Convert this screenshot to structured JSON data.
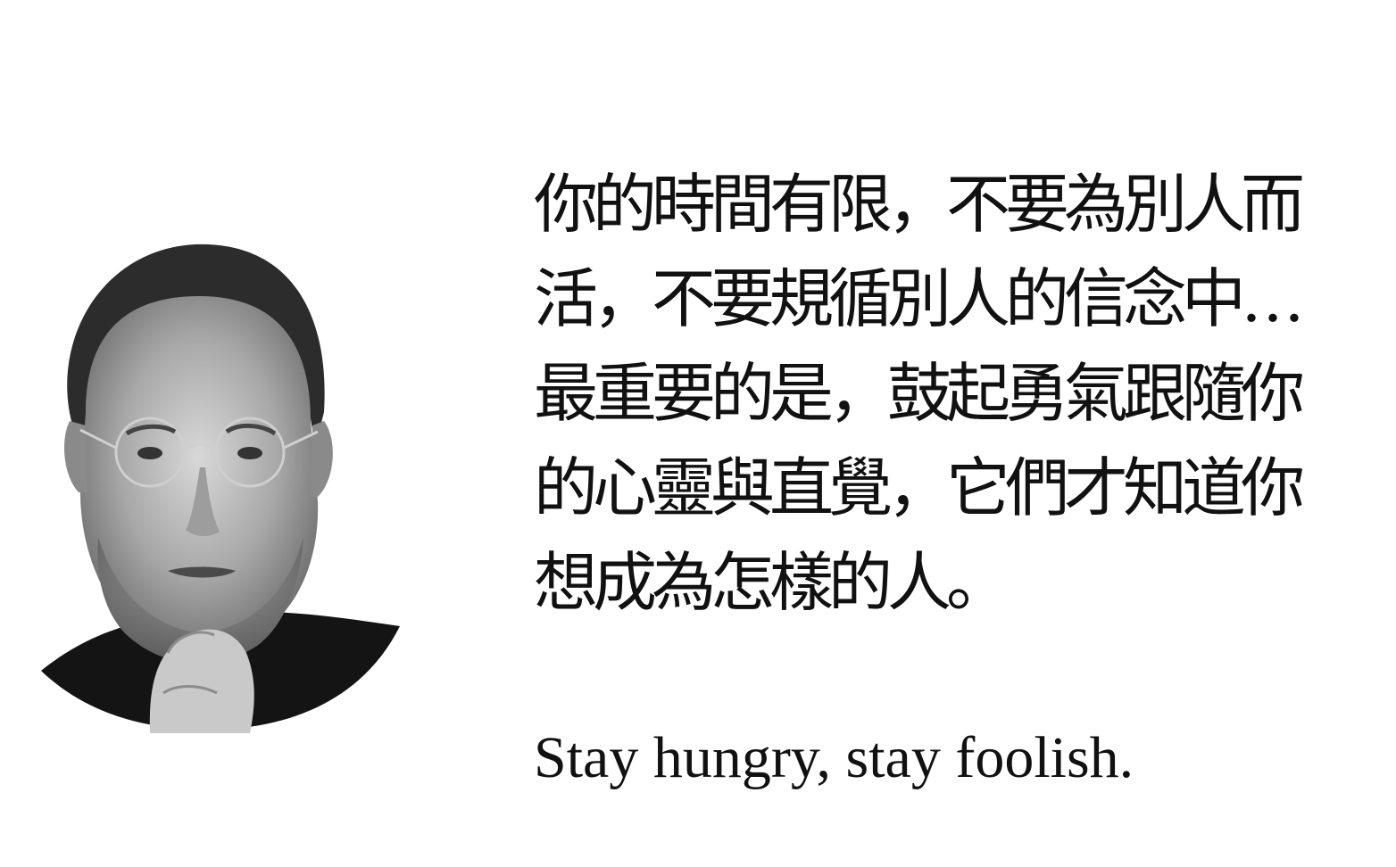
{
  "quote": {
    "lines": [
      "你的時間有限，不要為別人而",
      "活，不要規循別人的信念中…",
      "最重要的是，鼓起勇氣跟隨你",
      "的心靈與直覺，它們才知道你",
      "想成為怎樣的人。"
    ]
  },
  "motto": "Stay hungry, stay foolish.",
  "portrait": {
    "icon": "portrait-photo",
    "style": "black-and-white"
  }
}
